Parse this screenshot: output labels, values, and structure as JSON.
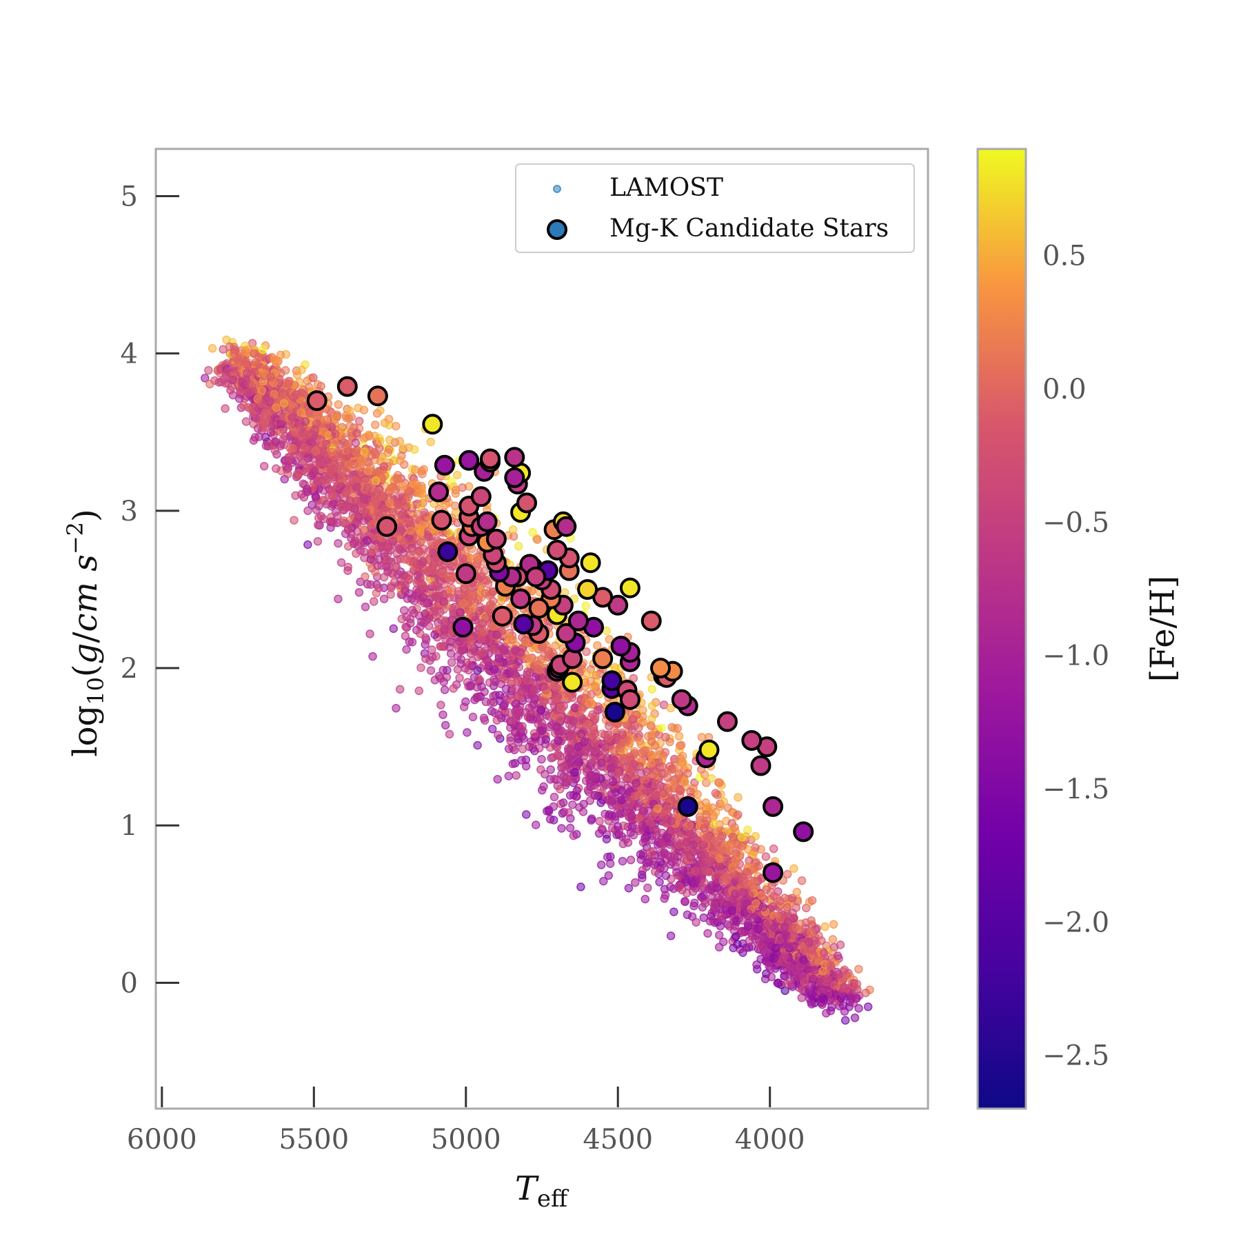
{
  "chart_data": {
    "type": "scatter",
    "title": "",
    "xlabel": "T_eff",
    "ylabel": "log10(g/cm s^-2)",
    "xlim": [
      6020,
      3480
    ],
    "ylim": [
      5.3,
      -0.8
    ],
    "x_inverted": true,
    "y_inverted": true,
    "x_ticks": [
      6000,
      5500,
      5000,
      4500,
      4000
    ],
    "x_tick_labels": [
      "6000",
      "5500",
      "5000",
      "4500",
      "4000"
    ],
    "y_ticks": [
      0,
      1,
      2,
      3,
      4,
      5
    ],
    "y_tick_labels": [
      "0",
      "1",
      "2",
      "3",
      "4",
      "5"
    ],
    "grid": false,
    "legend": {
      "placement": "top-right",
      "entries": [
        "LAMOST",
        "Mg-K Candidate Stars"
      ]
    },
    "colorbar": {
      "label": "[Fe/H]",
      "colormap": "plasma",
      "range": [
        -2.7,
        0.9
      ],
      "ticks": [
        0.5,
        0.0,
        -0.5,
        -1.0,
        -1.5,
        -2.0,
        -2.5
      ],
      "tick_labels": [
        "0.5",
        "0.0",
        "−0.5",
        "−1.0",
        "−1.5",
        "−2.0",
        "−2.5"
      ]
    },
    "series": [
      {
        "name": "Mg-K Candidate Stars",
        "columns": [
          "teff",
          "logg",
          "feh"
        ],
        "points": [
          [
            3990,
            0.7,
            -1.2
          ],
          [
            3890,
            0.96,
            -1.3
          ],
          [
            4270,
            1.12,
            -2.6
          ],
          [
            3990,
            1.12,
            -0.9
          ],
          [
            4210,
            1.43,
            -0.9
          ],
          [
            4200,
            1.48,
            0.8
          ],
          [
            4030,
            1.38,
            -0.6
          ],
          [
            4010,
            1.5,
            -0.5
          ],
          [
            4060,
            1.54,
            -0.5
          ],
          [
            4140,
            1.66,
            -0.5
          ],
          [
            4270,
            1.76,
            -0.8
          ],
          [
            4290,
            1.8,
            -0.6
          ],
          [
            4510,
            1.72,
            -2.6
          ],
          [
            4520,
            1.87,
            -2.0
          ],
          [
            4520,
            1.92,
            -2.2
          ],
          [
            4470,
            1.86,
            -0.3
          ],
          [
            4460,
            1.8,
            -0.3
          ],
          [
            4650,
            1.91,
            0.8
          ],
          [
            4700,
            1.98,
            -0.6
          ],
          [
            4695,
            2.0,
            -0.8
          ],
          [
            4690,
            2.02,
            -0.4
          ],
          [
            4350,
            1.95,
            0.4
          ],
          [
            4340,
            1.94,
            -0.1
          ],
          [
            4320,
            1.98,
            0.3
          ],
          [
            4360,
            2.0,
            0.3
          ],
          [
            4550,
            2.06,
            0.2
          ],
          [
            4460,
            2.04,
            -0.9
          ],
          [
            4460,
            2.1,
            -1.0
          ],
          [
            4490,
            2.14,
            -1.3
          ],
          [
            4650,
            2.06,
            -0.4
          ],
          [
            4640,
            2.16,
            -1.4
          ],
          [
            4670,
            2.22,
            -0.6
          ],
          [
            4760,
            2.22,
            -0.1
          ],
          [
            4580,
            2.26,
            -1.3
          ],
          [
            4630,
            2.3,
            -0.9
          ],
          [
            4700,
            2.34,
            0.8
          ],
          [
            4780,
            2.27,
            -0.6
          ],
          [
            4810,
            2.28,
            -2.0
          ],
          [
            4680,
            2.4,
            -0.5
          ],
          [
            4720,
            2.44,
            0.2
          ],
          [
            4760,
            2.38,
            0.1
          ],
          [
            4820,
            2.44,
            -0.6
          ],
          [
            4880,
            2.33,
            -0.1
          ],
          [
            5010,
            2.26,
            -1.3
          ],
          [
            4500,
            2.4,
            -0.6
          ],
          [
            4550,
            2.45,
            -0.1
          ],
          [
            4460,
            2.51,
            0.8
          ],
          [
            4390,
            2.3,
            -0.1
          ],
          [
            4600,
            2.5,
            0.7
          ],
          [
            4590,
            2.67,
            0.8
          ],
          [
            4660,
            2.62,
            0.1
          ],
          [
            4660,
            2.7,
            -0.2
          ],
          [
            4720,
            2.5,
            -0.3
          ],
          [
            4750,
            2.56,
            -0.5
          ],
          [
            4780,
            2.64,
            0.2
          ],
          [
            4790,
            2.66,
            -0.8
          ],
          [
            4730,
            2.62,
            -2.0
          ],
          [
            4770,
            2.58,
            -0.5
          ],
          [
            4830,
            2.58,
            -0.3
          ],
          [
            4870,
            2.52,
            0.2
          ],
          [
            4850,
            2.58,
            -0.8
          ],
          [
            4890,
            2.61,
            -1.5
          ],
          [
            4900,
            2.67,
            -0.3
          ],
          [
            4910,
            2.72,
            -0.4
          ],
          [
            4930,
            2.8,
            0.3
          ],
          [
            4900,
            2.82,
            -0.4
          ],
          [
            5000,
            2.6,
            -0.6
          ],
          [
            5060,
            2.74,
            -2.3
          ],
          [
            4700,
            2.75,
            -0.3
          ],
          [
            4710,
            2.88,
            0.2
          ],
          [
            4680,
            2.93,
            0.7
          ],
          [
            4670,
            2.9,
            -0.8
          ],
          [
            4990,
            2.84,
            -0.4
          ],
          [
            4980,
            2.9,
            0.1
          ],
          [
            4990,
            2.96,
            -0.1
          ],
          [
            4950,
            2.9,
            -0.5
          ],
          [
            4930,
            2.93,
            -0.8
          ],
          [
            5080,
            2.94,
            -0.2
          ],
          [
            4990,
            3.03,
            -0.2
          ],
          [
            4950,
            3.09,
            -0.4
          ],
          [
            4820,
            2.99,
            0.8
          ],
          [
            4800,
            3.05,
            -0.2
          ],
          [
            5090,
            3.12,
            -0.8
          ],
          [
            4830,
            3.17,
            -0.6
          ],
          [
            4820,
            3.24,
            0.8
          ],
          [
            4840,
            3.21,
            -1.0
          ],
          [
            4940,
            3.25,
            -1.0
          ],
          [
            4920,
            3.31,
            0.3
          ],
          [
            4920,
            3.33,
            -0.2
          ],
          [
            4840,
            3.34,
            -0.7
          ],
          [
            5070,
            3.29,
            -1.2
          ],
          [
            4990,
            3.32,
            -1.2
          ],
          [
            5110,
            3.55,
            0.8
          ],
          [
            5260,
            2.9,
            -0.2
          ],
          [
            5490,
            3.7,
            -0.1
          ],
          [
            5390,
            3.79,
            -0.1
          ],
          [
            5290,
            3.73,
            0.1
          ]
        ]
      }
    ]
  }
}
